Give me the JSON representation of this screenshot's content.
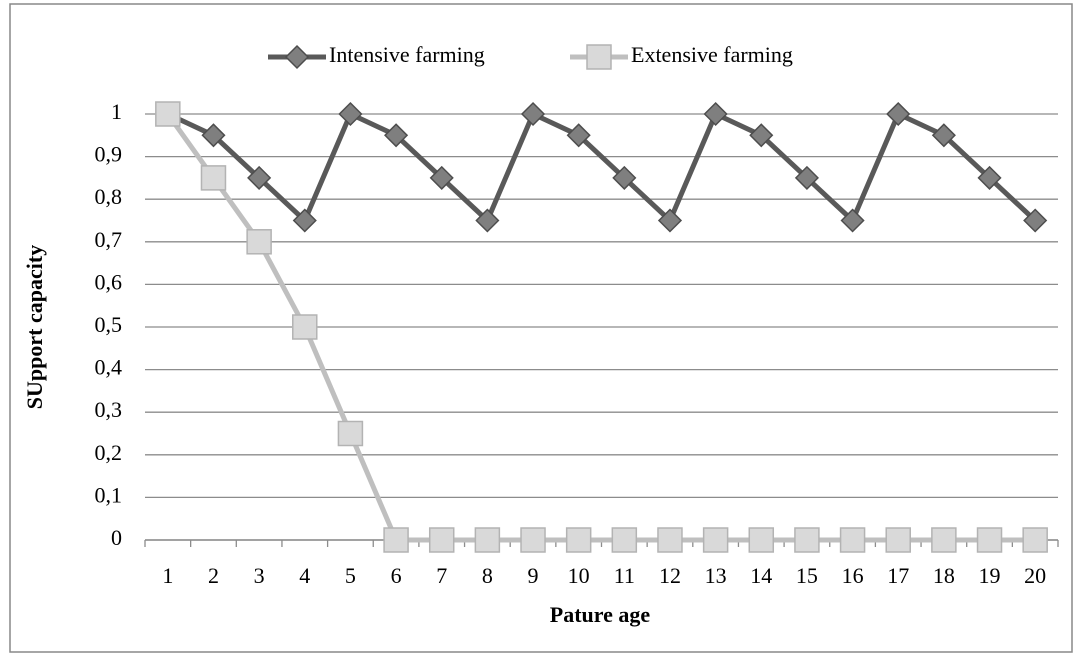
{
  "chart_data": {
    "type": "line",
    "x_label": "Pature age",
    "y_label": "SUpport capacity",
    "categories": [
      "1",
      "2",
      "3",
      "4",
      "5",
      "6",
      "7",
      "8",
      "9",
      "10",
      "11",
      "12",
      "13",
      "14",
      "15",
      "16",
      "17",
      "18",
      "19",
      "20"
    ],
    "series": [
      {
        "name": "Intensive farming",
        "color": "#595959",
        "marker": "diamond",
        "values": [
          1,
          0.95,
          0.85,
          0.75,
          1,
          0.95,
          0.85,
          0.75,
          1,
          0.95,
          0.85,
          0.75,
          1,
          0.95,
          0.85,
          0.75,
          1,
          0.95,
          0.85,
          0.75
        ]
      },
      {
        "name": "Extensive farming",
        "color": "#bfbfbf",
        "marker": "square",
        "values": [
          1,
          0.85,
          0.7,
          0.5,
          0.25,
          0,
          0,
          0,
          0,
          0,
          0,
          0,
          0,
          0,
          0,
          0,
          0,
          0,
          0,
          0
        ]
      }
    ],
    "ylim": [
      0,
      1
    ],
    "yticks": [
      0,
      {
        "value": 0.1,
        "label": "0,1"
      },
      {
        "value": 0.2,
        "label": "0,2"
      },
      {
        "value": 0.3,
        "label": "0,3"
      },
      {
        "value": 0.4,
        "label": "0,4"
      },
      {
        "value": 0.5,
        "label": "0,5"
      },
      {
        "value": 0.6,
        "label": "0,6"
      },
      {
        "value": 0.7,
        "label": "0,7"
      },
      {
        "value": 0.8,
        "label": "0,8"
      },
      {
        "value": 0.9,
        "label": "0,9"
      },
      1
    ],
    "grid": true,
    "legend": "top"
  }
}
